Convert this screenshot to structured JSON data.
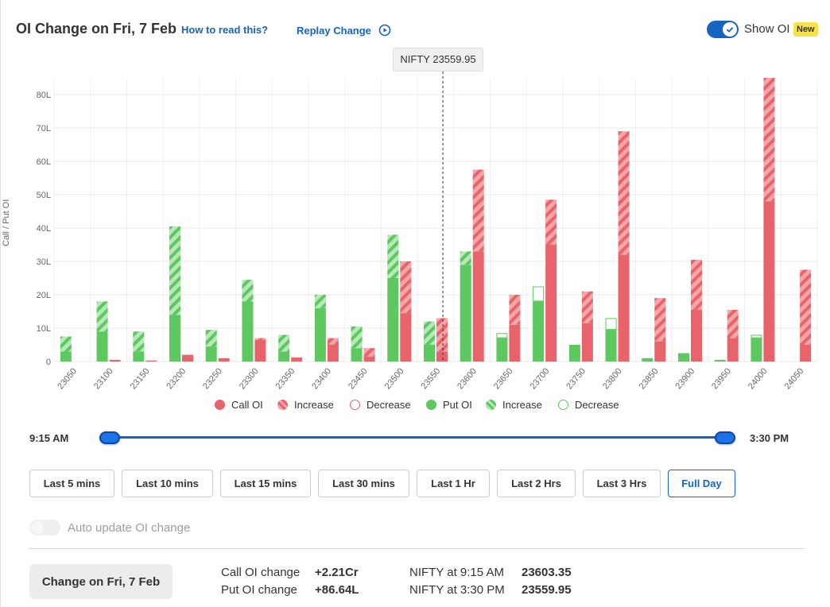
{
  "header": {
    "title": "OI Change on Fri, 7 Feb",
    "how_link": "How to read this?",
    "replay_link": "Replay Change",
    "show_oi_label": "Show OI",
    "new_badge": "New"
  },
  "tooltip": "NIFTY 23559.95",
  "colors": {
    "call": "#e8636a",
    "call_light": "#f4a6aa",
    "put": "#5cc85f",
    "put_light": "#a9e3aa",
    "accent": "#1565c0"
  },
  "chart_data": {
    "type": "bar",
    "ylabel": "Call / Put OI",
    "yticks": [
      "0",
      "10L",
      "20L",
      "30L",
      "40L",
      "50L",
      "60L",
      "70L",
      "80L"
    ],
    "ylim": [
      0,
      85
    ],
    "categories": [
      "23050",
      "23100",
      "23150",
      "23200",
      "23250",
      "23300",
      "23350",
      "23400",
      "23450",
      "23500",
      "23550",
      "23600",
      "23650",
      "23700",
      "23750",
      "23800",
      "23850",
      "23900",
      "23950",
      "24000",
      "24050"
    ],
    "spot_marker_x": 23559.95,
    "series": [
      {
        "name": "Put OI",
        "values": [
          3,
          9,
          3,
          14,
          4.5,
          18,
          3,
          16,
          4,
          25,
          5,
          29,
          7,
          18,
          5,
          9.5,
          1,
          2.5,
          0.5,
          7,
          0
        ]
      },
      {
        "name": "Increase (Put)",
        "values": [
          4.5,
          9,
          6,
          26.5,
          5,
          6.5,
          5,
          4,
          6.5,
          13,
          7,
          4,
          0,
          0,
          0,
          0,
          0,
          0,
          0,
          0,
          0
        ]
      },
      {
        "name": "Decrease (Put)",
        "values": [
          0,
          0,
          0,
          0,
          0,
          0,
          0,
          0,
          0,
          0,
          0,
          0,
          1.5,
          4.5,
          0,
          3.5,
          0,
          0,
          0,
          1,
          0
        ]
      },
      {
        "name": "Call OI",
        "values": [
          0,
          0.5,
          0.3,
          2,
          1,
          6.5,
          1.2,
          5,
          1.5,
          14.5,
          3,
          33,
          11,
          35,
          11.5,
          32,
          6,
          15.5,
          7,
          48,
          5
        ]
      },
      {
        "name": "Increase (Call)",
        "values": [
          0,
          0,
          0,
          0,
          0,
          0.5,
          0,
          2,
          2.5,
          15.5,
          10,
          24.5,
          9,
          13.5,
          9.5,
          37,
          13,
          15,
          8.5,
          37,
          22.5
        ]
      },
      {
        "name": "Decrease (Call)",
        "values": [
          0,
          0,
          0,
          0,
          0,
          0,
          0,
          0,
          0,
          0,
          0,
          0,
          0,
          0,
          0,
          0,
          0,
          0,
          0,
          0,
          0
        ]
      }
    ]
  },
  "legend": [
    {
      "label": "Call OI",
      "style": "call-solid"
    },
    {
      "label": "Increase",
      "style": "call-hatch"
    },
    {
      "label": "Decrease",
      "style": "call-outline"
    },
    {
      "label": "Put OI",
      "style": "put-solid"
    },
    {
      "label": "Increase",
      "style": "put-hatch"
    },
    {
      "label": "Decrease",
      "style": "put-outline"
    }
  ],
  "slider": {
    "start_time": "9:15 AM",
    "end_time": "3:30 PM",
    "start_fraction": 0,
    "end_fraction": 1
  },
  "range_buttons": [
    {
      "label": "Last 5 mins",
      "active": false
    },
    {
      "label": "Last 10 mins",
      "active": false
    },
    {
      "label": "Last 15 mins",
      "active": false
    },
    {
      "label": "Last 30 mins",
      "active": false
    },
    {
      "label": "Last 1 Hr",
      "active": false
    },
    {
      "label": "Last 2 Hrs",
      "active": false
    },
    {
      "label": "Last 3 Hrs",
      "active": false
    },
    {
      "label": "Full Day",
      "active": true
    }
  ],
  "auto_update": {
    "label": "Auto update OI change",
    "enabled": false
  },
  "summary": {
    "change_button": "Change on Fri, 7 Feb",
    "call_oi_label": "Call OI change",
    "call_oi_value": "+2.21Cr",
    "put_oi_label": "Put OI change",
    "put_oi_value": "+86.64L",
    "nifty_start_label": "NIFTY at 9:15 AM",
    "nifty_start_value": "23603.35",
    "nifty_end_label": "NIFTY at 3:30 PM",
    "nifty_end_value": "23559.95"
  }
}
